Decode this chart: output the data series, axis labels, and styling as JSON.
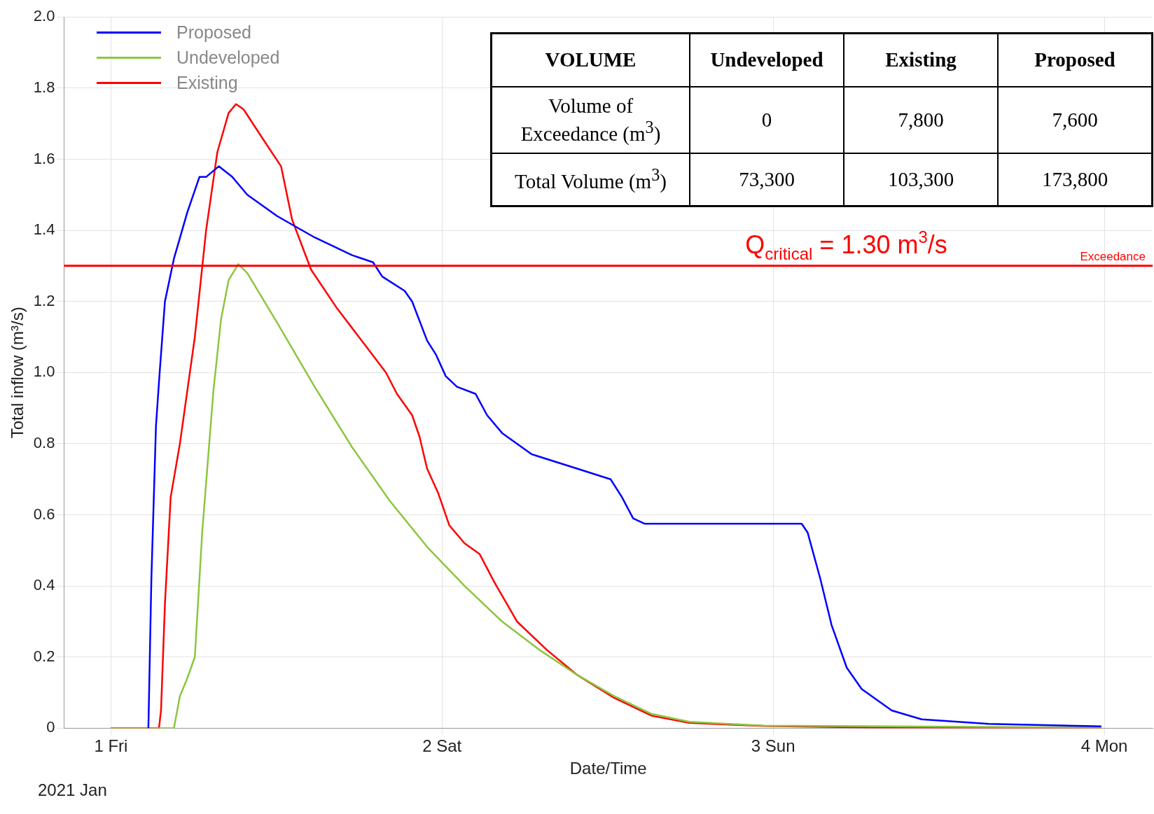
{
  "chart_data": [
    {
      "type": "line",
      "xlabel": "Date/Time",
      "ylabel": "Total inflow (m³/s)",
      "xlim": [
        "2020-12-31T20:36",
        "2021-01-04T03:30"
      ],
      "ylim": [
        0,
        2.0
      ],
      "xticks": [
        {
          "value": "2021-01-01",
          "label": "1 Fri"
        },
        {
          "value": "2021-01-02",
          "label": "2 Sat"
        },
        {
          "value": "2021-01-03",
          "label": "3 Sun"
        },
        {
          "value": "2021-01-04",
          "label": "4 Mon"
        }
      ],
      "yticks": [
        {
          "value": 0,
          "label": "0"
        },
        {
          "value": 0.2,
          "label": "0.2"
        },
        {
          "value": 0.4,
          "label": "0.4"
        },
        {
          "value": 0.6,
          "label": "0.6"
        },
        {
          "value": 0.8,
          "label": "0.8"
        },
        {
          "value": 1.0,
          "label": "1.0"
        },
        {
          "value": 1.2,
          "label": "1.2"
        },
        {
          "value": 1.4,
          "label": "1.4"
        },
        {
          "value": 1.6,
          "label": "1.6"
        },
        {
          "value": 1.8,
          "label": "1.8"
        },
        {
          "value": 2.0,
          "label": "2.0"
        }
      ],
      "grid": true,
      "legend": "top left",
      "marker": "none",
      "line_style": "solid",
      "ref_lines": [
        {
          "axis": "y",
          "value": 1.3,
          "label": "Exceedance",
          "color": "#ff0000"
        }
      ],
      "annotations": [
        "2021 Jan",
        {
          "text": "Q$_{critical}$ = 1.30 m$^{3}$/s",
          "x": "2021-01-03T05:18",
          "y": 1.3
        }
      ],
      "series": [
        {
          "name": "Proposed",
          "color": "#0000ff",
          "x": [
            "2021-01-01T02:43",
            "2021-01-01T02:56",
            "2021-01-01T03:16",
            "2021-01-01T03:32",
            "2021-01-01T03:55",
            "2021-01-01T04:34",
            "2021-01-01T05:32",
            "2021-01-01T06:25",
            "2021-01-01T06:54",
            "2021-01-01T07:49",
            "2021-01-01T08:48",
            "2021-01-01T09:53",
            "2021-01-01T12:03",
            "2021-01-01T14:46",
            "2021-01-01T17:29",
            "2021-01-01T19:00",
            "2021-01-01T19:40",
            "2021-01-01T21:17",
            "2021-01-01T21:50",
            "2021-01-01T22:55",
            "2021-01-01T23:34",
            "2021-01-02T00:16",
            "2021-01-02T01:05",
            "2021-01-02T02:26",
            "2021-01-02T03:16",
            "2021-01-02T04:21",
            "2021-01-02T06:31",
            "2021-01-02T09:47",
            "2021-01-02T12:13",
            "2021-01-02T13:02",
            "2021-01-02T13:51",
            "2021-01-02T14:40",
            "2021-01-02T17:55",
            "2021-01-03T02:04",
            "2021-01-03T02:30",
            "2021-01-03T03:25",
            "2021-01-03T04:14",
            "2021-01-03T05:20",
            "2021-01-03T06:25",
            "2021-01-03T08:35",
            "2021-01-03T10:46",
            "2021-01-03T15:38",
            "2021-01-03T23:47"
          ],
          "values": [
            0,
            0.42,
            0.85,
            1.0,
            1.2,
            1.32,
            1.45,
            1.55,
            1.55,
            1.58,
            1.55,
            1.5,
            1.44,
            1.38,
            1.33,
            1.31,
            1.27,
            1.23,
            1.2,
            1.09,
            1.05,
            0.99,
            0.96,
            0.94,
            0.88,
            0.83,
            0.77,
            0.73,
            0.7,
            0.65,
            0.59,
            0.575,
            0.575,
            0.575,
            0.55,
            0.42,
            0.29,
            0.17,
            0.11,
            0.05,
            0.025,
            0.012,
            0.005
          ]
        },
        {
          "name": "Undeveloped",
          "color": "#8cc63f",
          "x": [
            "2021-01-01T00:00",
            "2021-01-01T04:34",
            "2021-01-01T05:00",
            "2021-01-01T05:32",
            "2021-01-01T06:05",
            "2021-01-01T06:37",
            "2021-01-01T07:26",
            "2021-01-01T07:59",
            "2021-01-01T08:32",
            "2021-01-01T09:14",
            "2021-01-01T09:53",
            "2021-01-01T12:03",
            "2021-01-01T14:46",
            "2021-01-01T17:29",
            "2021-01-01T20:12",
            "2021-01-01T22:55",
            "2021-01-02T01:38",
            "2021-01-02T04:21",
            "2021-01-02T07:04",
            "2021-01-02T09:47",
            "2021-01-02T12:29",
            "2021-01-02T15:12",
            "2021-01-02T17:55",
            "2021-01-02T23:21",
            "2021-01-03T23:47"
          ],
          "values": [
            0,
            0,
            0.09,
            0.14,
            0.2,
            0.55,
            0.95,
            1.15,
            1.26,
            1.305,
            1.28,
            1.14,
            0.96,
            0.79,
            0.64,
            0.51,
            0.4,
            0.3,
            0.22,
            0.15,
            0.09,
            0.04,
            0.018,
            0.007,
            0.002
          ]
        },
        {
          "name": "Existing",
          "color": "#ff0000",
          "x": [
            "2021-01-01T00:00",
            "2021-01-01T03:29",
            "2021-01-01T03:38",
            "2021-01-01T03:55",
            "2021-01-01T04:20",
            "2021-01-01T05:00",
            "2021-01-01T06:05",
            "2021-01-01T06:54",
            "2021-01-01T07:43",
            "2021-01-01T08:32",
            "2021-01-01T09:04",
            "2021-01-01T09:37",
            "2021-01-01T10:58",
            "2021-01-01T12:20",
            "2021-01-01T13:08",
            "2021-01-01T14:30",
            "2021-01-01T16:24",
            "2021-01-01T18:34",
            "2021-01-01T19:56",
            "2021-01-01T20:44",
            "2021-01-01T21:50",
            "2021-01-01T22:22",
            "2021-01-01T22:55",
            "2021-01-01T23:44",
            "2021-01-02T00:32",
            "2021-01-02T01:38",
            "2021-01-02T02:43",
            "2021-01-02T03:48",
            "2021-01-02T05:26",
            "2021-01-02T07:36",
            "2021-01-02T09:47",
            "2021-01-02T12:29",
            "2021-01-02T15:12",
            "2021-01-02T17:55",
            "2021-01-02T23:21",
            "2021-01-03T07:30",
            "2021-01-03T23:47"
          ],
          "values": [
            0,
            0,
            0.05,
            0.35,
            0.65,
            0.8,
            1.1,
            1.4,
            1.62,
            1.73,
            1.755,
            1.74,
            1.66,
            1.58,
            1.43,
            1.29,
            1.18,
            1.07,
            1.0,
            0.94,
            0.88,
            0.82,
            0.73,
            0.66,
            0.57,
            0.52,
            0.49,
            0.41,
            0.3,
            0.22,
            0.15,
            0.085,
            0.035,
            0.015,
            0.006,
            0.002,
            0.001
          ]
        }
      ]
    },
    {
      "type": "other",
      "title": "VOLUME",
      "categories": [
        "Undeveloped",
        "Existing",
        "Proposed"
      ],
      "y_categories": [
        "Volume of Exceedance (m$^{3}$)",
        "Total Volume (m$^{3}$)"
      ],
      "cell_labels": [
        [
          "0",
          "7,800",
          "7,600"
        ],
        [
          "73,300",
          "103,300",
          "173,800"
        ]
      ]
    }
  ]
}
